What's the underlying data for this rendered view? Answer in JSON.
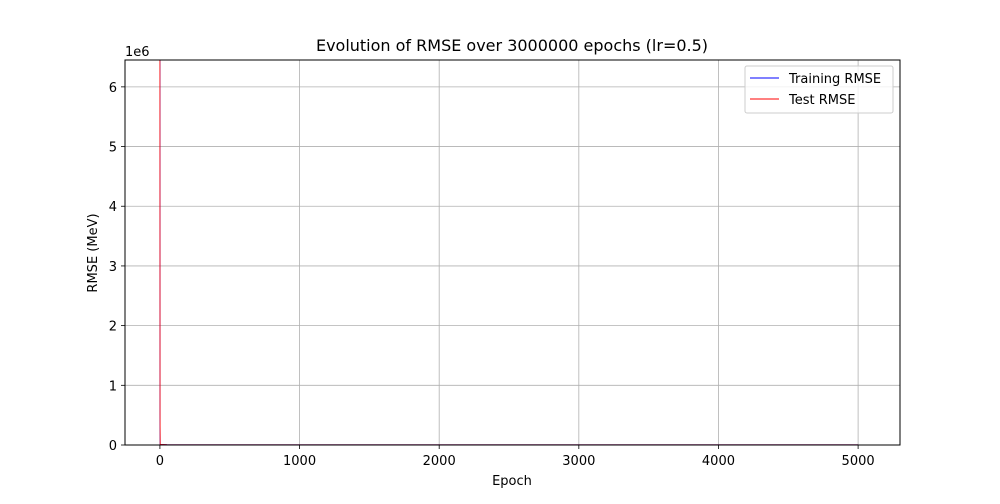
{
  "chart_data": {
    "type": "line",
    "title": "Evolution of RMSE over 3000000 epochs (lr=0.5)",
    "xlabel": "Epoch",
    "ylabel": "RMSE (MeV)",
    "y_offset_label": "1e6",
    "xlim": [
      -250,
      5300
    ],
    "ylim": [
      0,
      6.45
    ],
    "x_ticks": [
      0,
      1000,
      2000,
      3000,
      4000,
      5000
    ],
    "x_tick_labels": [
      "0",
      "1000",
      "2000",
      "3000",
      "4000",
      "5000"
    ],
    "y_ticks": [
      0,
      1,
      2,
      3,
      4,
      5,
      6
    ],
    "y_tick_labels": [
      "0",
      "1",
      "2",
      "3",
      "4",
      "5",
      "6"
    ],
    "grid": true,
    "legend_position": "top-right",
    "series": [
      {
        "name": "Training RMSE",
        "color": "#0000ff",
        "x": [
          0,
          1,
          2,
          50,
          1000,
          2000,
          3000,
          4000,
          5000
        ],
        "y": [
          6.45,
          0.5,
          0.01,
          0.005,
          0.004,
          0.004,
          0.004,
          0.004,
          0.004
        ]
      },
      {
        "name": "Test RMSE",
        "color": "#ff0000",
        "x": [
          0,
          1,
          2,
          50,
          1000,
          2000,
          3000,
          4000,
          5000
        ],
        "y": [
          6.45,
          0.5,
          0.01,
          0.005,
          0.004,
          0.004,
          0.004,
          0.004,
          0.004
        ]
      }
    ]
  }
}
